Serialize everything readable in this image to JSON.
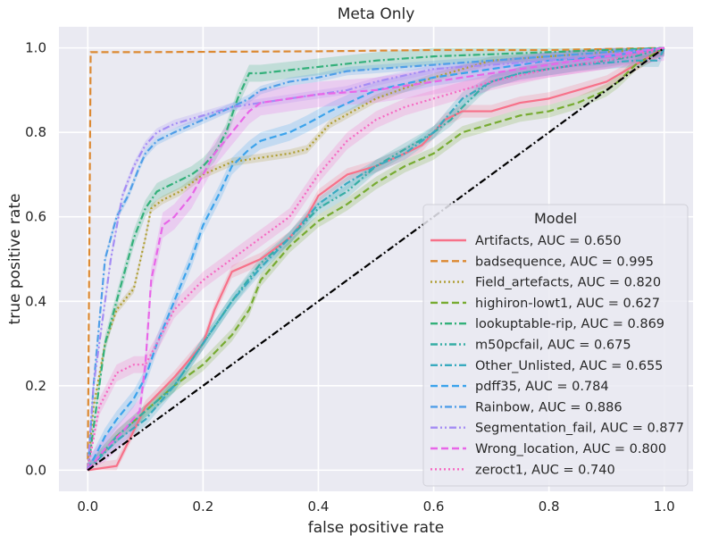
{
  "chart_data": {
    "type": "line",
    "title": "Meta Only",
    "xlabel": "false positive rate",
    "ylabel": "true positive rate",
    "xlim": [
      -0.05,
      1.05
    ],
    "ylim": [
      -0.05,
      1.05
    ],
    "xticks": [
      0.0,
      0.2,
      0.4,
      0.6,
      0.8,
      1.0
    ],
    "xtick_labels": [
      "0.0",
      "0.2",
      "0.4",
      "0.6",
      "0.8",
      "1.0"
    ],
    "yticks": [
      0.0,
      0.2,
      0.4,
      0.6,
      0.8,
      1.0
    ],
    "ytick_labels": [
      "0.0",
      "0.2",
      "0.4",
      "0.6",
      "0.8",
      "1.0"
    ],
    "grid": true,
    "legend": {
      "title": "Model",
      "placement": "center-right"
    },
    "series": [
      {
        "name": "Artifacts, AUC = 0.650",
        "color": "#f77189",
        "dash": "solid",
        "band": 0.015,
        "x": [
          0,
          0.05,
          0.1,
          0.15,
          0.2,
          0.22,
          0.25,
          0.3,
          0.35,
          0.38,
          0.4,
          0.45,
          0.5,
          0.55,
          0.58,
          0.6,
          0.62,
          0.65,
          0.7,
          0.75,
          0.8,
          0.85,
          0.9,
          0.95,
          1.0
        ],
        "y": [
          0,
          0.01,
          0.15,
          0.22,
          0.3,
          0.38,
          0.47,
          0.5,
          0.55,
          0.6,
          0.65,
          0.7,
          0.72,
          0.75,
          0.77,
          0.8,
          0.83,
          0.85,
          0.85,
          0.87,
          0.88,
          0.9,
          0.92,
          0.96,
          1.0
        ]
      },
      {
        "name": "badsequence, AUC = 0.995",
        "color": "#dc8932",
        "dash": "dashed",
        "band": 0,
        "x": [
          0,
          0.005,
          0.1,
          0.4,
          0.6,
          0.8,
          1.0
        ],
        "y": [
          0,
          0.99,
          0.99,
          0.992,
          0.995,
          0.995,
          1.0
        ]
      },
      {
        "name": "Field_artefacts, AUC = 0.820",
        "color": "#ae9d31",
        "dash": "dotted",
        "band": 0.01,
        "x": [
          0,
          0.01,
          0.03,
          0.05,
          0.08,
          0.1,
          0.11,
          0.13,
          0.16,
          0.2,
          0.25,
          0.3,
          0.35,
          0.38,
          0.42,
          0.5,
          0.6,
          0.7,
          0.8,
          0.9,
          1.0
        ],
        "y": [
          0,
          0.15,
          0.3,
          0.38,
          0.43,
          0.55,
          0.62,
          0.64,
          0.66,
          0.7,
          0.73,
          0.74,
          0.75,
          0.76,
          0.82,
          0.88,
          0.93,
          0.97,
          0.98,
          0.99,
          1.0
        ]
      },
      {
        "name": "highiron-lowt1, AUC = 0.627",
        "color": "#77ab31",
        "dash": "dashed",
        "band": 0.015,
        "x": [
          0,
          0.05,
          0.1,
          0.15,
          0.2,
          0.25,
          0.28,
          0.3,
          0.35,
          0.4,
          0.45,
          0.5,
          0.55,
          0.6,
          0.62,
          0.65,
          0.7,
          0.75,
          0.8,
          0.85,
          0.9,
          0.92,
          0.95,
          1.0
        ],
        "y": [
          0,
          0.08,
          0.14,
          0.2,
          0.25,
          0.32,
          0.38,
          0.45,
          0.53,
          0.59,
          0.63,
          0.68,
          0.72,
          0.75,
          0.77,
          0.8,
          0.82,
          0.84,
          0.85,
          0.87,
          0.9,
          0.92,
          0.96,
          1.0
        ]
      },
      {
        "name": "lookuptable-rip, AUC = 0.869",
        "color": "#33b07a",
        "dash": "dashdot",
        "band": 0.02,
        "x": [
          0,
          0.03,
          0.06,
          0.08,
          0.1,
          0.12,
          0.15,
          0.18,
          0.2,
          0.22,
          0.24,
          0.26,
          0.28,
          0.3,
          0.4,
          0.5,
          0.6,
          0.7,
          0.8,
          0.9,
          1.0
        ],
        "y": [
          0,
          0.3,
          0.45,
          0.55,
          0.62,
          0.66,
          0.68,
          0.7,
          0.72,
          0.75,
          0.8,
          0.88,
          0.94,
          0.94,
          0.955,
          0.97,
          0.98,
          0.985,
          0.99,
          0.995,
          1.0
        ]
      },
      {
        "name": "m50pcfail, AUC = 0.675",
        "color": "#36ada4",
        "dash": "dashdotdot",
        "band": 0.015,
        "x": [
          0,
          0.05,
          0.1,
          0.15,
          0.2,
          0.25,
          0.3,
          0.35,
          0.4,
          0.45,
          0.5,
          0.55,
          0.6,
          0.63,
          0.65,
          0.68,
          0.7,
          0.75,
          0.8,
          0.85,
          0.9,
          0.95,
          1.0
        ],
        "y": [
          0,
          0.08,
          0.14,
          0.2,
          0.3,
          0.4,
          0.49,
          0.55,
          0.62,
          0.66,
          0.72,
          0.76,
          0.8,
          0.83,
          0.86,
          0.9,
          0.92,
          0.94,
          0.95,
          0.96,
          0.97,
          0.98,
          1.0
        ]
      },
      {
        "name": "Other_Unlisted, AUC = 0.655",
        "color": "#38aabf",
        "dash": "dashdot",
        "band": 0.015,
        "x": [
          0,
          0.05,
          0.1,
          0.15,
          0.2,
          0.25,
          0.3,
          0.35,
          0.4,
          0.45,
          0.5,
          0.55,
          0.6,
          0.65,
          0.7,
          0.75,
          0.8,
          0.85,
          0.9,
          0.95,
          0.99,
          1.0
        ],
        "y": [
          0,
          0.07,
          0.12,
          0.2,
          0.3,
          0.4,
          0.48,
          0.55,
          0.63,
          0.68,
          0.72,
          0.75,
          0.8,
          0.88,
          0.92,
          0.94,
          0.95,
          0.96,
          0.965,
          0.97,
          0.97,
          1.0
        ]
      },
      {
        "name": "pdff35, AUC = 0.784",
        "color": "#3ba3ec",
        "dash": "dashed",
        "band": 0.02,
        "x": [
          0,
          0.03,
          0.05,
          0.08,
          0.1,
          0.12,
          0.15,
          0.18,
          0.2,
          0.23,
          0.25,
          0.28,
          0.3,
          0.35,
          0.38,
          0.42,
          0.5,
          0.6,
          0.7,
          0.8,
          0.9,
          1.0
        ],
        "y": [
          0,
          0.08,
          0.12,
          0.17,
          0.22,
          0.3,
          0.4,
          0.5,
          0.58,
          0.66,
          0.72,
          0.76,
          0.78,
          0.8,
          0.82,
          0.85,
          0.9,
          0.93,
          0.95,
          0.97,
          0.98,
          1.0
        ]
      },
      {
        "name": "Rainbow, AUC = 0.886",
        "color": "#4f9ee8",
        "dash": "dashdot",
        "band": 0.01,
        "x": [
          0,
          0.01,
          0.02,
          0.03,
          0.05,
          0.07,
          0.09,
          0.1,
          0.12,
          0.15,
          0.2,
          0.25,
          0.28,
          0.3,
          0.35,
          0.4,
          0.45,
          0.5,
          0.6,
          0.7,
          0.8,
          0.9,
          1.0
        ],
        "y": [
          0,
          0.2,
          0.35,
          0.5,
          0.6,
          0.65,
          0.72,
          0.75,
          0.78,
          0.8,
          0.83,
          0.86,
          0.88,
          0.9,
          0.92,
          0.93,
          0.945,
          0.95,
          0.96,
          0.97,
          0.98,
          0.99,
          1.0
        ]
      },
      {
        "name": "Segmentation_fail, AUC = 0.877",
        "color": "#a48cf4",
        "dash": "dashdotdot",
        "band": 0.01,
        "x": [
          0,
          0.01,
          0.02,
          0.04,
          0.06,
          0.08,
          0.1,
          0.12,
          0.15,
          0.2,
          0.25,
          0.3,
          0.35,
          0.4,
          0.45,
          0.5,
          0.6,
          0.7,
          0.8,
          0.9,
          1.0
        ],
        "y": [
          0,
          0.2,
          0.3,
          0.5,
          0.65,
          0.72,
          0.77,
          0.8,
          0.82,
          0.84,
          0.86,
          0.87,
          0.88,
          0.89,
          0.9,
          0.92,
          0.95,
          0.96,
          0.97,
          0.985,
          1.0
        ]
      },
      {
        "name": "Wrong_location, AUC = 0.800",
        "color": "#e866e8",
        "dash": "dashed",
        "band": 0.03,
        "x": [
          0,
          0.03,
          0.06,
          0.09,
          0.1,
          0.11,
          0.13,
          0.15,
          0.18,
          0.2,
          0.22,
          0.25,
          0.28,
          0.3,
          0.35,
          0.4,
          0.5,
          0.6,
          0.7,
          0.8,
          0.9,
          1.0
        ],
        "y": [
          0,
          0.05,
          0.09,
          0.14,
          0.25,
          0.45,
          0.58,
          0.6,
          0.65,
          0.7,
          0.75,
          0.8,
          0.85,
          0.87,
          0.88,
          0.89,
          0.9,
          0.92,
          0.94,
          0.96,
          0.98,
          1.0
        ]
      },
      {
        "name": "zeroct1, AUC = 0.740",
        "color": "#f668c2",
        "dash": "dotted",
        "band": 0.02,
        "x": [
          0,
          0.02,
          0.05,
          0.08,
          0.1,
          0.12,
          0.15,
          0.2,
          0.25,
          0.3,
          0.35,
          0.4,
          0.45,
          0.5,
          0.55,
          0.6,
          0.7,
          0.8,
          0.9,
          1.0
        ],
        "y": [
          0,
          0.15,
          0.23,
          0.25,
          0.25,
          0.3,
          0.38,
          0.45,
          0.5,
          0.55,
          0.6,
          0.7,
          0.78,
          0.83,
          0.86,
          0.88,
          0.92,
          0.95,
          0.97,
          1.0
        ]
      }
    ],
    "reference_line": {
      "x": [
        0,
        1
      ],
      "y": [
        0,
        1
      ],
      "color": "#000000",
      "dash": "dashdot"
    }
  }
}
